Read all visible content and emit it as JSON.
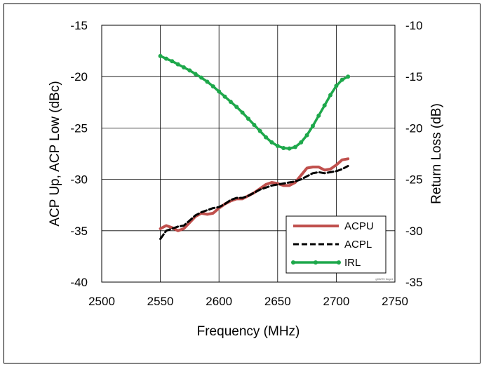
{
  "chart_data": {
    "type": "line",
    "xlabel": "Frequency (MHz)",
    "ylabel_left": "ACP Up, ACP Low (dBc)",
    "ylabel_right": "Return Loss (dB)",
    "xlim": [
      2500,
      2750
    ],
    "ylim_left": [
      -40,
      -15
    ],
    "ylim_right": [
      -35,
      -10
    ],
    "x_ticks": [
      "2500",
      "2550",
      "2600",
      "2650",
      "2700",
      "2750"
    ],
    "y_left_ticks": [
      "-40",
      "-35",
      "-30",
      "-25",
      "-20",
      "-15"
    ],
    "y_right_ticks": [
      "-35",
      "-30",
      "-25",
      "-20",
      "-15",
      "-10"
    ],
    "grid": true,
    "legend_position": "bottom-right",
    "watermark": "g00270 fmgr4",
    "series": [
      {
        "name": "ACPU",
        "axis": "left",
        "color": "#c0504d",
        "style": "solid",
        "x": [
          2550,
          2555,
          2560,
          2565,
          2570,
          2575,
          2580,
          2585,
          2590,
          2595,
          2600,
          2605,
          2610,
          2615,
          2620,
          2625,
          2630,
          2635,
          2640,
          2645,
          2650,
          2655,
          2660,
          2665,
          2670,
          2675,
          2680,
          2685,
          2690,
          2695,
          2700,
          2705,
          2710
        ],
        "y": [
          -34.8,
          -34.5,
          -34.7,
          -35.0,
          -34.8,
          -34.2,
          -33.6,
          -33.3,
          -33.4,
          -33.3,
          -32.8,
          -32.4,
          -32.1,
          -31.9,
          -31.9,
          -31.6,
          -31.3,
          -30.9,
          -30.5,
          -30.3,
          -30.4,
          -30.6,
          -30.6,
          -30.3,
          -29.6,
          -28.9,
          -28.8,
          -28.8,
          -29.1,
          -29.0,
          -28.6,
          -28.1,
          -28.0
        ]
      },
      {
        "name": "ACPL",
        "axis": "left",
        "color": "#000000",
        "style": "dashed",
        "x": [
          2550,
          2555,
          2560,
          2565,
          2570,
          2575,
          2580,
          2585,
          2590,
          2595,
          2600,
          2605,
          2610,
          2615,
          2620,
          2625,
          2630,
          2635,
          2640,
          2645,
          2650,
          2655,
          2660,
          2665,
          2670,
          2675,
          2680,
          2685,
          2690,
          2695,
          2700,
          2705,
          2710
        ],
        "y": [
          -35.8,
          -35.0,
          -34.8,
          -34.6,
          -34.5,
          -34.0,
          -33.5,
          -33.2,
          -33.0,
          -32.8,
          -32.7,
          -32.4,
          -32.0,
          -31.8,
          -31.8,
          -31.6,
          -31.3,
          -31.0,
          -30.8,
          -30.6,
          -30.5,
          -30.4,
          -30.3,
          -30.2,
          -30.0,
          -29.7,
          -29.4,
          -29.3,
          -29.4,
          -29.3,
          -29.2,
          -29.0,
          -28.7
        ]
      },
      {
        "name": "IRL",
        "axis": "right",
        "color": "#1ea84b",
        "style": "solid-markers",
        "x": [
          2550,
          2555,
          2560,
          2565,
          2570,
          2575,
          2580,
          2585,
          2590,
          2595,
          2600,
          2605,
          2610,
          2615,
          2620,
          2625,
          2630,
          2635,
          2640,
          2645,
          2650,
          2655,
          2660,
          2665,
          2670,
          2675,
          2680,
          2685,
          2690,
          2695,
          2700,
          2705,
          2710
        ],
        "y": [
          -13.0,
          -13.25,
          -13.5,
          -13.8,
          -14.1,
          -14.4,
          -14.75,
          -15.1,
          -15.5,
          -15.95,
          -16.45,
          -16.95,
          -17.45,
          -17.95,
          -18.5,
          -19.1,
          -19.7,
          -20.3,
          -20.9,
          -21.4,
          -21.75,
          -21.95,
          -22.0,
          -21.85,
          -21.4,
          -20.7,
          -19.8,
          -18.8,
          -17.8,
          -16.8,
          -15.9,
          -15.3,
          -15.0
        ]
      }
    ]
  }
}
